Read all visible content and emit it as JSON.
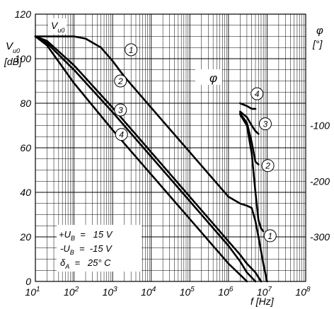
{
  "chart_data": {
    "type": "line",
    "title": "",
    "x_axis": {
      "label_main": "f",
      "label_unit": "[Hz]",
      "scale": "log",
      "range": [
        10,
        100000000
      ],
      "tick_bases": [
        "10",
        "10",
        "10",
        "10",
        "10",
        "10",
        "10",
        "10"
      ],
      "tick_exps": [
        "1",
        "2",
        "3",
        "4",
        "5",
        "6",
        "7",
        "8"
      ],
      "grid": true
    },
    "y_left": {
      "label_main": "V",
      "label_sub": "u0",
      "label_unit": "[dB]",
      "range": [
        0,
        120
      ],
      "ticks": [
        0,
        20,
        40,
        60,
        80,
        100,
        120
      ],
      "tick_labels": [
        "0",
        "20",
        "40",
        "60",
        "80",
        "100",
        "120"
      ]
    },
    "y_right": {
      "label_main": "φ",
      "label_unit": "[°]",
      "range": [
        -380,
        100
      ],
      "ticks": [
        -100,
        -200,
        -300
      ],
      "tick_labels": [
        "-100",
        "-200",
        "-300"
      ]
    },
    "top_curve_label": {
      "main": "V",
      "sub": "u0"
    },
    "phase_curve_label": "φ",
    "conditions": {
      "line1": {
        "main": "+U",
        "sub": "B",
        "rest": "  =   15 V"
      },
      "line2": {
        "main": "-U",
        "sub": "B",
        "rest": "  =  -15 V"
      },
      "line3": {
        "main": "δ",
        "sub": "A",
        "rest": "  =   25° C"
      }
    },
    "gain_series": [
      {
        "id": "1",
        "x": [
          10,
          100,
          200,
          500,
          1000,
          2000,
          10000,
          100000,
          1000000,
          2000000,
          3000000,
          4000000,
          5000000,
          6000000,
          8000000,
          10000000
        ],
        "y": [
          110,
          110,
          109,
          105,
          99,
          92,
          78,
          58,
          38,
          35,
          34,
          33,
          27,
          20,
          8,
          0
        ]
      },
      {
        "id": "2",
        "x": [
          10,
          20,
          100,
          1000,
          10000,
          100000,
          1000000,
          2000000,
          3000000,
          5000000,
          7000000
        ],
        "y": [
          110,
          108,
          97,
          78,
          58,
          38,
          18,
          12,
          8,
          4,
          0
        ]
      },
      {
        "id": "3",
        "x": [
          10,
          20,
          100,
          1000,
          10000,
          100000,
          1000000,
          2000000,
          3000000,
          5000000
        ],
        "y": [
          110,
          107,
          95,
          76,
          56,
          36,
          16,
          9,
          4,
          0
        ]
      },
      {
        "id": "4",
        "x": [
          10,
          20,
          100,
          1000,
          10000,
          100000,
          1000000,
          2000000,
          3000000
        ],
        "y": [
          110,
          106,
          89,
          68,
          48,
          28,
          8,
          3,
          0
        ]
      }
    ],
    "phase_series": [
      {
        "id": "1",
        "x": [
          2000000,
          3000000,
          4000000,
          5000000,
          6000000,
          7000000,
          8000000
        ],
        "y": [
          -80,
          -100,
          -150,
          -220,
          -270,
          -285,
          -290
        ]
      },
      {
        "id": "2",
        "x": [
          2000000,
          3000000,
          4000000,
          5000000,
          6000000
        ],
        "y": [
          -78,
          -95,
          -130,
          -165,
          -170
        ]
      },
      {
        "id": "3",
        "x": [
          2000000,
          3000000,
          4000000,
          5000000,
          6000000
        ],
        "y": [
          -75,
          -85,
          -100,
          -110,
          -115
        ]
      },
      {
        "id": "4",
        "x": [
          2000000,
          3000000,
          4000000,
          5000000
        ],
        "y": [
          -60,
          -65,
          -70,
          -70
        ]
      }
    ],
    "curve_labels": [
      {
        "text": "1",
        "x": 3000,
        "y": 104
      },
      {
        "text": "2",
        "x": 1600,
        "y": 90
      },
      {
        "text": "3",
        "x": 1600,
        "y": 77
      },
      {
        "text": "4",
        "x": 1700,
        "y": 66
      },
      {
        "text": "4",
        "x": 5500000,
        "y": -43
      },
      {
        "text": "3",
        "x": 9000000,
        "y": -97
      },
      {
        "text": "2",
        "x": 10500000,
        "y": -172
      },
      {
        "text": "1",
        "x": 12000000,
        "y": -298
      }
    ]
  }
}
